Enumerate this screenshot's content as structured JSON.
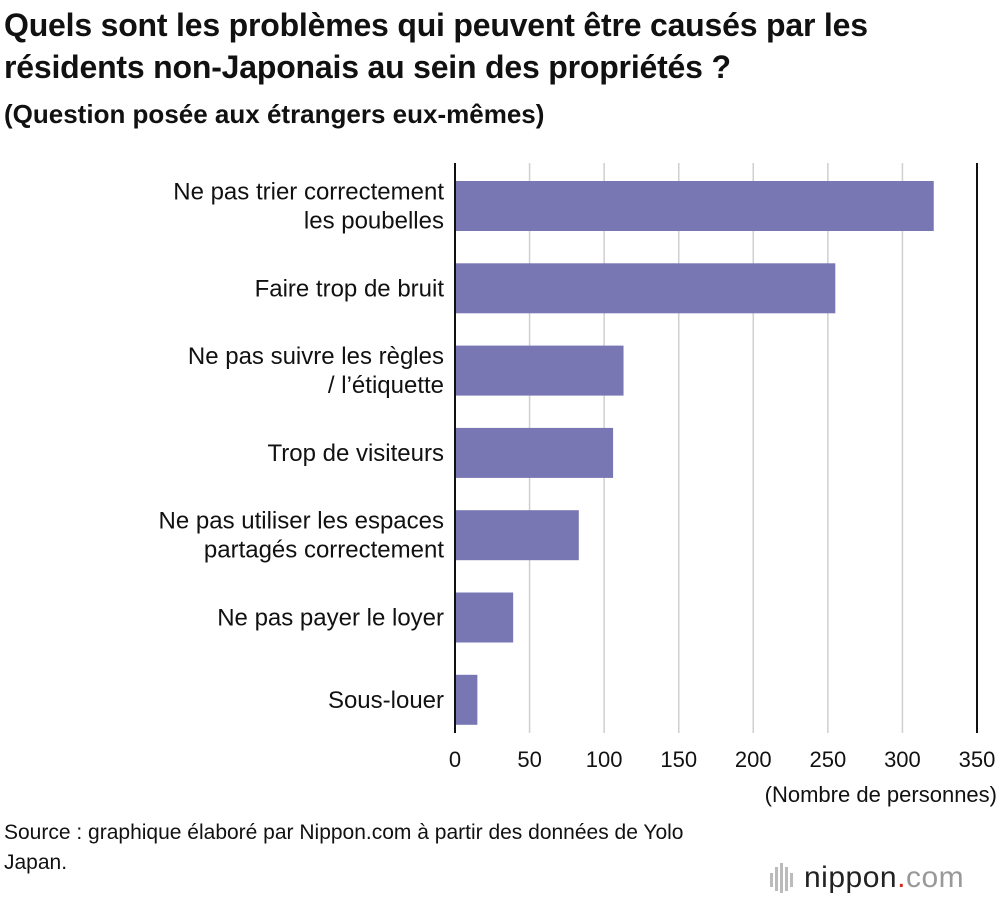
{
  "title": "Quels sont les problèmes qui peuvent être causés par les résidents non-Japonais au sein des propriétés ?",
  "subtitle": "(Question posée aux étrangers eux-mêmes)",
  "source": "Source : graphique élaboré par Nippon.com à partir des données de Yolo Japan.",
  "logo": {
    "name": "nippon",
    "dot": ".",
    "suffix": "com"
  },
  "chart_data": {
    "type": "bar",
    "orientation": "horizontal",
    "categories": [
      [
        "Ne pas trier correctement",
        "les poubelles"
      ],
      [
        "Faire trop de bruit"
      ],
      [
        "Ne pas suivre les règles",
        "/ l’étiquette"
      ],
      [
        "Trop de visiteurs"
      ],
      [
        "Ne pas utiliser les espaces",
        "partagés correctement"
      ],
      [
        "Ne pas payer le loyer"
      ],
      [
        "Sous-louer"
      ]
    ],
    "values": [
      321,
      255,
      113,
      106,
      83,
      39,
      15
    ],
    "xlim": [
      0,
      350
    ],
    "xticks": [
      "0",
      "50",
      "100",
      "150",
      "200",
      "250",
      "300",
      "350"
    ],
    "xlabel": "(Nombre de personnes)",
    "ylabel": "",
    "grid": true,
    "bar_color": "#7877b3"
  }
}
